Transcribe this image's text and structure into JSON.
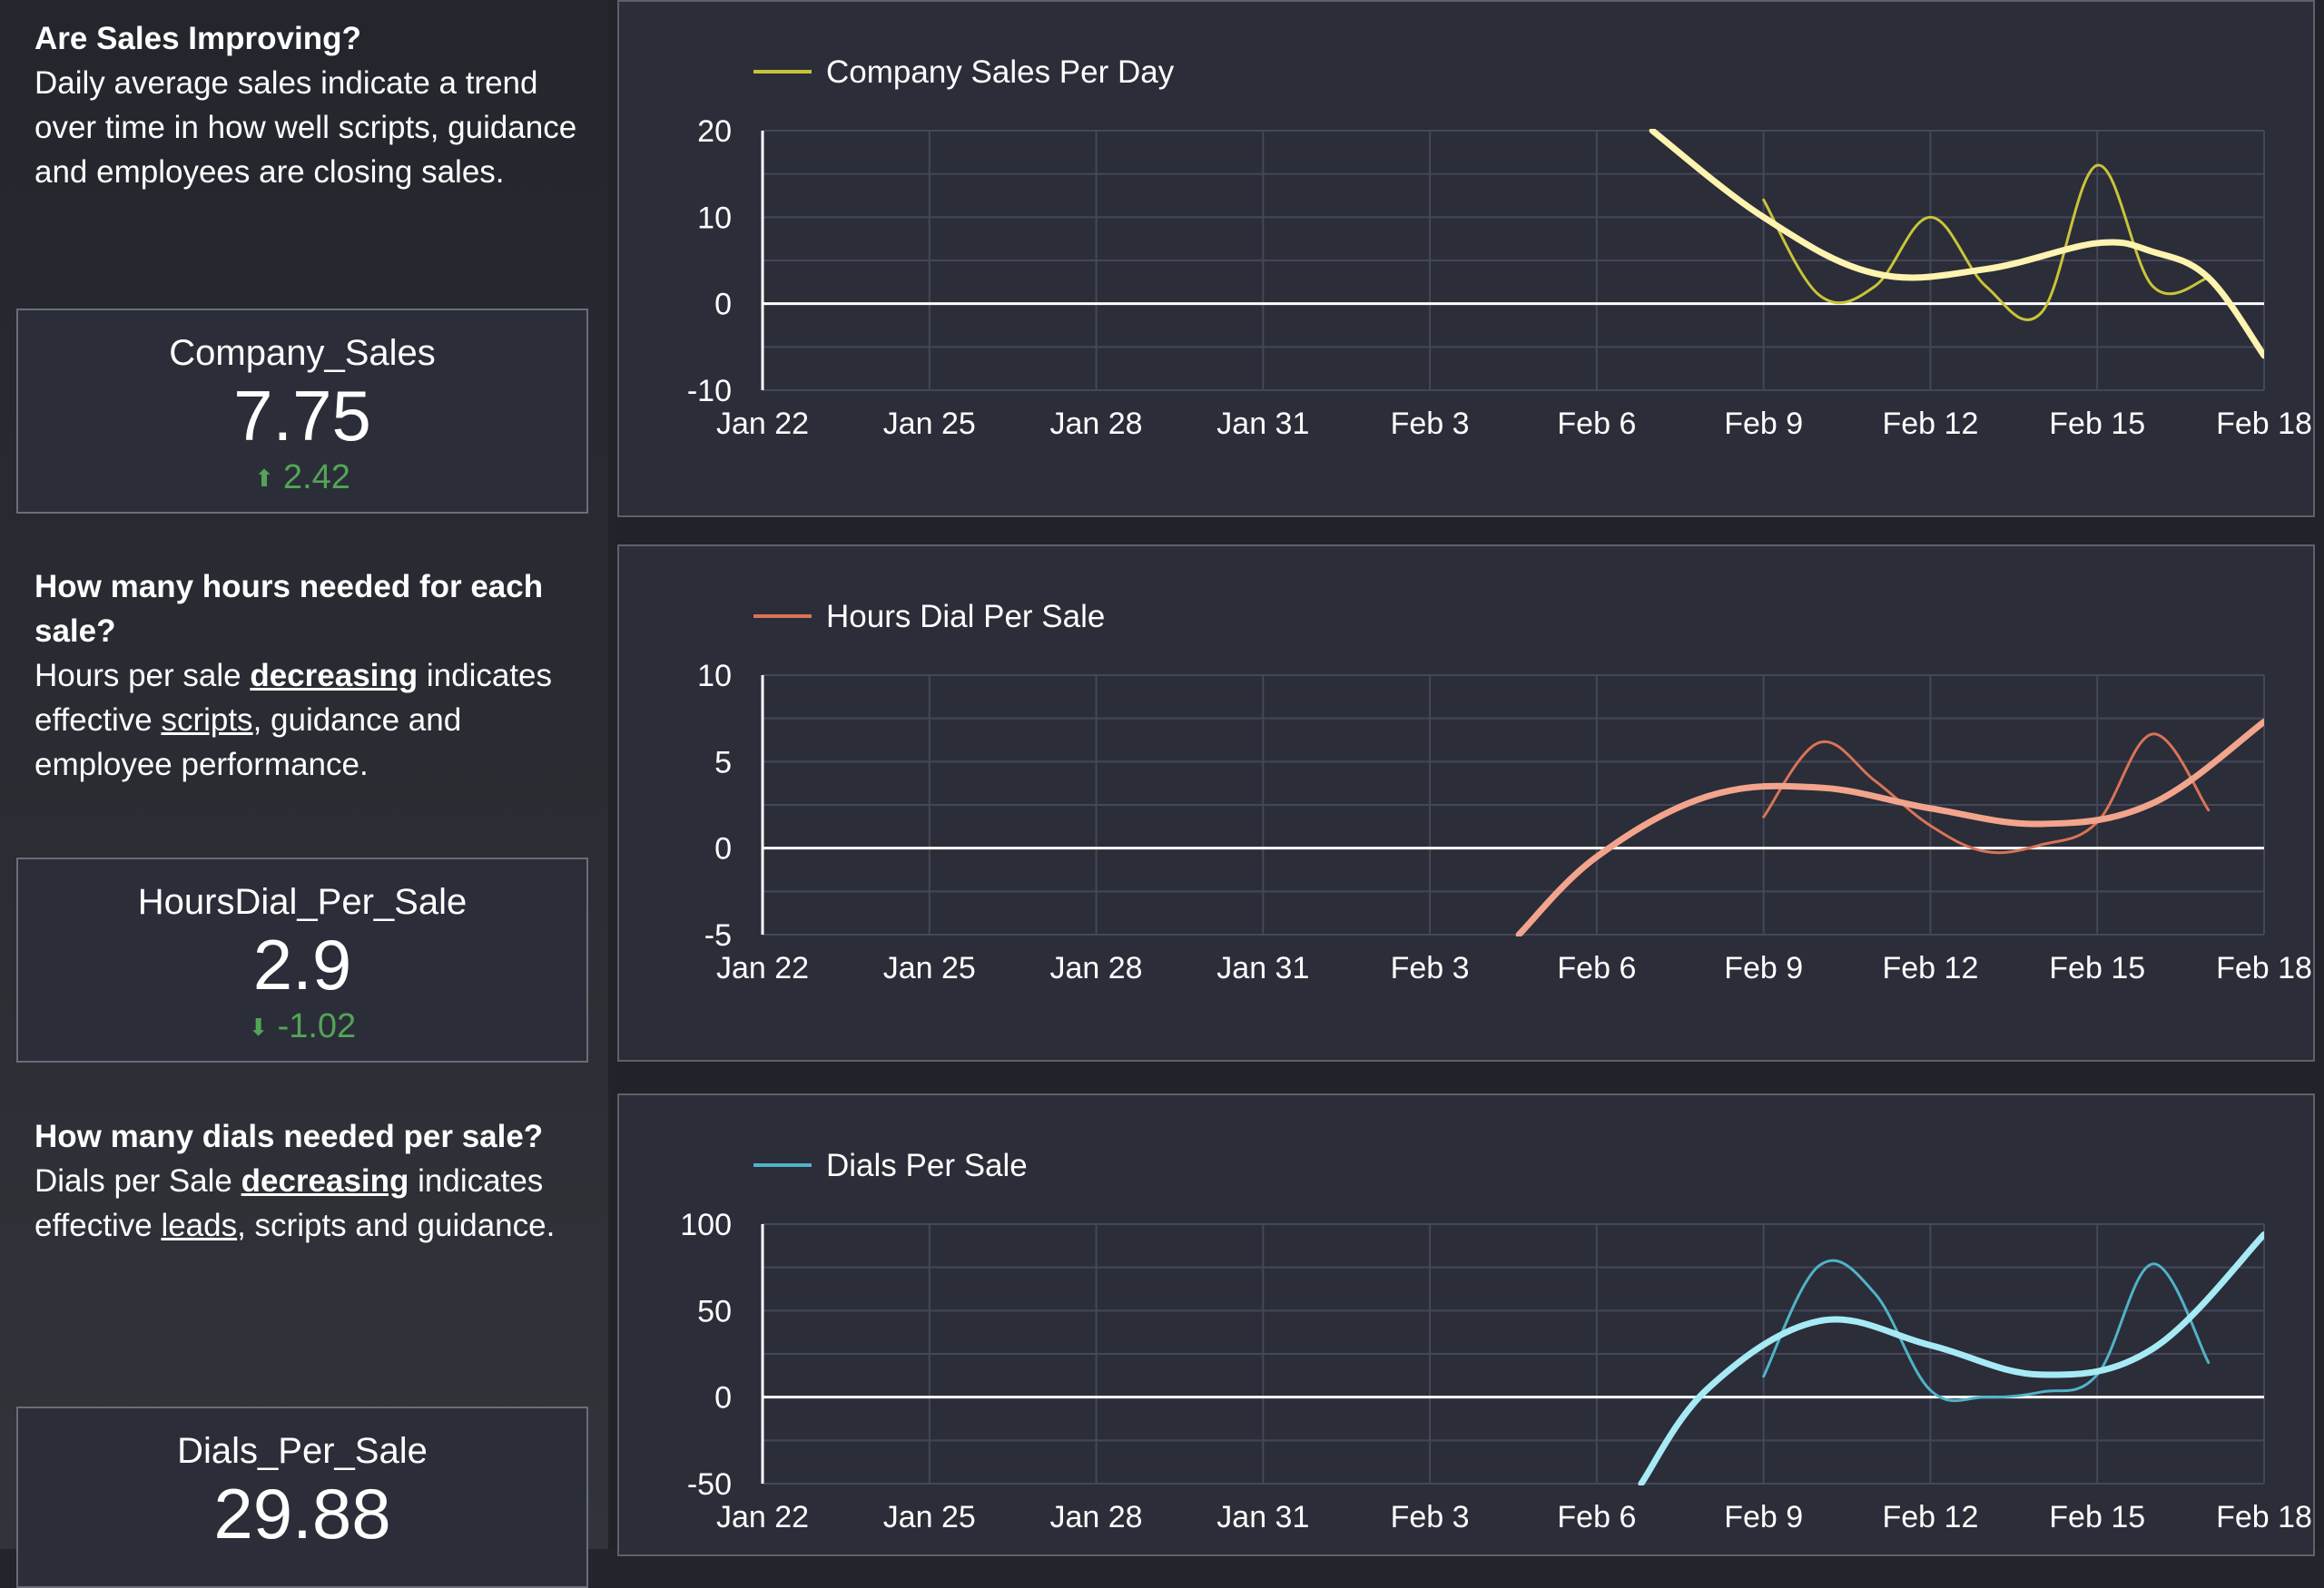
{
  "sections": [
    {
      "question": "Are Sales Improving?",
      "description_parts": [
        {
          "text": "Daily average sales indicate a trend over time in how well scripts, guidance and employees are closing sales.",
          "style": "plain"
        }
      ],
      "kpi": {
        "name": "Company_Sales",
        "value": "7.75",
        "delta": "2.42",
        "direction": "up"
      }
    },
    {
      "question": "How many hours needed for each sale?",
      "description_parts": [
        {
          "text": "Hours per sale ",
          "style": "plain"
        },
        {
          "text": "decreasing",
          "style": "bold-underline"
        },
        {
          "text": " indicates effective ",
          "style": "plain"
        },
        {
          "text": "scripts",
          "style": "underline"
        },
        {
          "text": ", guidance and employee performance.",
          "style": "plain"
        }
      ],
      "kpi": {
        "name": "HoursDial_Per_Sale",
        "value": "2.9",
        "delta": "-1.02",
        "direction": "down"
      }
    },
    {
      "question": "How many dials needed per sale?",
      "description_parts": [
        {
          "text": "Dials per Sale ",
          "style": "plain"
        },
        {
          "text": "decreasing",
          "style": "bold-underline"
        },
        {
          "text": " indicates effective ",
          "style": "plain"
        },
        {
          "text": "leads",
          "style": "underline"
        },
        {
          "text": ", scripts and guidance.",
          "style": "plain"
        }
      ],
      "kpi": {
        "name": "Dials_Per_Sale",
        "value": "29.88",
        "delta": "",
        "direction": ""
      }
    }
  ],
  "colors": {
    "delta_positive": "#54a457",
    "grid": "#44475a",
    "zero_line": "#ffffff"
  },
  "chart_data": [
    {
      "type": "line",
      "series": [
        {
          "name": "Company Sales Per Day",
          "color": "#c8c43a",
          "smooth": false,
          "x": [
            "Feb 9",
            "Feb 10",
            "Feb 11",
            "Feb 12",
            "Feb 13",
            "Feb 14",
            "Feb 15",
            "Feb 16",
            "Feb 17"
          ],
          "values": [
            12,
            1,
            2,
            10,
            2,
            -1,
            16,
            2,
            3
          ]
        },
        {
          "name": "",
          "color": "#fff3b0",
          "trend": true,
          "x": [
            "Feb 7",
            "Feb 9",
            "Feb 11",
            "Feb 13",
            "Feb 15",
            "Feb 16",
            "Feb 17",
            "Feb 18"
          ],
          "values": [
            20,
            10,
            3.5,
            4,
            7,
            6,
            3,
            -6
          ]
        }
      ],
      "x_ticks": [
        "Jan 22",
        "Jan 25",
        "Jan 28",
        "Jan 31",
        "Feb 3",
        "Feb 6",
        "Feb 9",
        "Feb 12",
        "Feb 15",
        "Feb 18"
      ],
      "x_range": [
        "Jan 22",
        "Feb 18"
      ],
      "y_ticks": [
        20,
        10,
        0,
        -10
      ],
      "ylim": [
        -10,
        20
      ],
      "legend": "top-left",
      "grid": true
    },
    {
      "type": "line",
      "series": [
        {
          "name": "Hours Dial Per Sale",
          "color": "#d97357",
          "smooth": false,
          "x": [
            "Feb 9",
            "Feb 10",
            "Feb 11",
            "Feb 12",
            "Feb 13",
            "Feb 14",
            "Feb 15",
            "Feb 16",
            "Feb 17"
          ],
          "values": [
            1.8,
            6.1,
            3.9,
            1.3,
            -0.2,
            0.2,
            1.5,
            6.6,
            2.2
          ]
        },
        {
          "name": "",
          "color": "#f2a48c",
          "trend": true,
          "x": [
            "Feb 4.6",
            "Feb 6",
            "Feb 8",
            "Feb 10",
            "Feb 12",
            "Feb 14",
            "Feb 16",
            "Feb 18"
          ],
          "values": [
            -5,
            -0.5,
            3,
            3.5,
            2.3,
            1.4,
            2.6,
            7.3
          ]
        }
      ],
      "x_ticks": [
        "Jan 22",
        "Jan 25",
        "Jan 28",
        "Jan 31",
        "Feb 3",
        "Feb 6",
        "Feb 9",
        "Feb 12",
        "Feb 15",
        "Feb 18"
      ],
      "x_range": [
        "Jan 22",
        "Feb 18"
      ],
      "y_ticks": [
        10,
        5,
        0,
        -5
      ],
      "ylim": [
        -5,
        10
      ],
      "legend": "top-left",
      "grid": true
    },
    {
      "type": "line",
      "series": [
        {
          "name": "Dials Per Sale",
          "color": "#4fb3c8",
          "smooth": false,
          "x": [
            "Feb 9",
            "Feb 10",
            "Feb 11",
            "Feb 12",
            "Feb 13",
            "Feb 14",
            "Feb 15",
            "Feb 16",
            "Feb 17"
          ],
          "values": [
            12,
            76,
            60,
            4,
            0,
            3,
            13,
            77,
            20
          ]
        },
        {
          "name": "",
          "color": "#a6eaf5",
          "trend": true,
          "x": [
            "Feb 6.8",
            "Feb 8",
            "Feb 10",
            "Feb 12",
            "Feb 14",
            "Feb 16",
            "Feb 18"
          ],
          "values": [
            -50,
            5,
            44,
            30,
            13,
            28,
            94
          ]
        }
      ],
      "x_ticks": [
        "Jan 22",
        "Jan 25",
        "Jan 28",
        "Jan 31",
        "Feb 3",
        "Feb 6",
        "Feb 9",
        "Feb 12",
        "Feb 15",
        "Feb 18"
      ],
      "x_range": [
        "Jan 22",
        "Feb 18"
      ],
      "y_ticks": [
        100,
        50,
        0,
        -50
      ],
      "ylim": [
        -50,
        100
      ],
      "legend": "top-left",
      "grid": true
    }
  ]
}
